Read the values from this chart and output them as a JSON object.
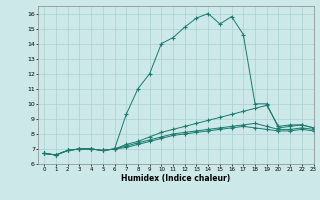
{
  "title": "",
  "xlabel": "Humidex (Indice chaleur)",
  "ylabel": "",
  "bg_color": "#cce8e8",
  "line_color": "#1a7a6e",
  "grid_color": "#aad0d0",
  "xlim": [
    -0.5,
    23
  ],
  "ylim": [
    6,
    16.5
  ],
  "xticks": [
    0,
    1,
    2,
    3,
    4,
    5,
    6,
    7,
    8,
    9,
    10,
    11,
    12,
    13,
    14,
    15,
    16,
    17,
    18,
    19,
    20,
    21,
    22,
    23
  ],
  "yticks": [
    6,
    7,
    8,
    9,
    10,
    11,
    12,
    13,
    14,
    15,
    16
  ],
  "line1_x": [
    0,
    1,
    2,
    3,
    4,
    5,
    6,
    7,
    8,
    9,
    10,
    11,
    12,
    13,
    14,
    15,
    16,
    17,
    18,
    19,
    20,
    21,
    22,
    23
  ],
  "line1_y": [
    6.7,
    6.6,
    6.9,
    7.0,
    7.0,
    6.9,
    7.0,
    9.3,
    11.0,
    12.0,
    14.0,
    14.4,
    15.1,
    15.7,
    16.0,
    15.3,
    15.8,
    14.6,
    10.0,
    10.0,
    8.4,
    8.5,
    8.6,
    8.4
  ],
  "line2_x": [
    0,
    1,
    2,
    3,
    4,
    5,
    6,
    7,
    8,
    9,
    10,
    11,
    12,
    13,
    14,
    15,
    16,
    17,
    18,
    19,
    20,
    21,
    22,
    23
  ],
  "line2_y": [
    6.7,
    6.6,
    6.9,
    7.0,
    7.0,
    6.9,
    7.0,
    7.3,
    7.5,
    7.8,
    8.1,
    8.3,
    8.5,
    8.7,
    8.9,
    9.1,
    9.3,
    9.5,
    9.7,
    9.9,
    8.5,
    8.6,
    8.6,
    8.4
  ],
  "line3_x": [
    0,
    1,
    2,
    3,
    4,
    5,
    6,
    7,
    8,
    9,
    10,
    11,
    12,
    13,
    14,
    15,
    16,
    17,
    18,
    19,
    20,
    21,
    22,
    23
  ],
  "line3_y": [
    6.7,
    6.6,
    6.9,
    7.0,
    7.0,
    6.9,
    7.0,
    7.2,
    7.4,
    7.6,
    7.8,
    8.0,
    8.1,
    8.2,
    8.3,
    8.4,
    8.5,
    8.6,
    8.7,
    8.5,
    8.3,
    8.3,
    8.4,
    8.3
  ],
  "line4_x": [
    0,
    1,
    2,
    3,
    4,
    5,
    6,
    7,
    8,
    9,
    10,
    11,
    12,
    13,
    14,
    15,
    16,
    17,
    18,
    19,
    20,
    21,
    22,
    23
  ],
  "line4_y": [
    6.7,
    6.6,
    6.9,
    7.0,
    7.0,
    6.9,
    7.0,
    7.1,
    7.3,
    7.5,
    7.7,
    7.9,
    8.0,
    8.1,
    8.2,
    8.3,
    8.4,
    8.5,
    8.4,
    8.3,
    8.2,
    8.2,
    8.3,
    8.2
  ]
}
